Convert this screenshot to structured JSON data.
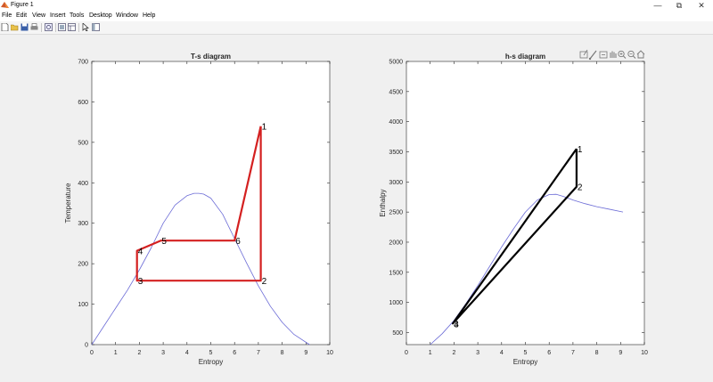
{
  "window": {
    "title": "Figure 1",
    "minimize_icon": "minimize-icon",
    "restore_icon": "restore-icon",
    "close_icon": "close-icon"
  },
  "menu": [
    "File",
    "Edit",
    "View",
    "Insert",
    "Tools",
    "Desktop",
    "Window",
    "Help"
  ],
  "toolbar": {
    "icons": [
      "new-figure-icon",
      "open-file-icon",
      "save-icon",
      "print-icon",
      "link-plot-icon",
      "hide-plot-tools-icon",
      "show-plot-tools-icon",
      "edit-plot-icon",
      "dock-icon"
    ]
  },
  "axes_toolbar": {
    "icons": [
      "export-icon",
      "brush-icon",
      "data-tips-icon",
      "pan-icon",
      "zoom-in-icon",
      "zoom-out-icon",
      "home-icon"
    ]
  },
  "chart_data": [
    {
      "type": "line",
      "title": "T-s diagram",
      "xlabel": "Entropy",
      "ylabel": "Temperature",
      "xlim": [
        0,
        10
      ],
      "ylim": [
        0,
        700
      ],
      "xticks": [
        "0",
        "1",
        "2",
        "3",
        "4",
        "5",
        "6",
        "7",
        "8",
        "9",
        "10"
      ],
      "yticks": [
        "0",
        "100",
        "200",
        "300",
        "400",
        "500",
        "600",
        "700"
      ],
      "grid": false,
      "series": [
        {
          "style": "dome",
          "color": "#6b6bd6",
          "x": [
            0.0,
            0.5,
            1.0,
            1.5,
            2.0,
            2.5,
            3.0,
            3.5,
            4.0,
            4.3,
            4.5,
            4.7,
            5.0,
            5.5,
            6.0,
            6.5,
            7.0,
            7.5,
            8.0,
            8.5,
            9.15
          ],
          "y": [
            0,
            45,
            90,
            135,
            185,
            240,
            300,
            345,
            368,
            374,
            374,
            372,
            362,
            322,
            262,
            202,
            145,
            95,
            55,
            25,
            0
          ]
        },
        {
          "style": "cycle",
          "color": "#d42020",
          "x": [
            7.1,
            7.1,
            1.9,
            1.9,
            2.9,
            6.0,
            7.1
          ],
          "y": [
            540,
            158,
            158,
            232,
            257,
            257,
            540
          ]
        }
      ],
      "point_labels": [
        {
          "text": "1",
          "x": 7.1,
          "y": 540
        },
        {
          "text": "2",
          "x": 7.1,
          "y": 158
        },
        {
          "text": "3",
          "x": 1.9,
          "y": 158
        },
        {
          "text": "4",
          "x": 1.9,
          "y": 232
        },
        {
          "text": "5",
          "x": 2.9,
          "y": 257
        },
        {
          "text": "6",
          "x": 6.0,
          "y": 257
        }
      ]
    },
    {
      "type": "line",
      "title": "h-s diagram",
      "xlabel": "Entropy",
      "ylabel": "Enthalpy",
      "xlim": [
        0,
        10
      ],
      "ylim": [
        300,
        5000
      ],
      "xticks": [
        "0",
        "1",
        "2",
        "3",
        "4",
        "5",
        "6",
        "7",
        "8",
        "9",
        "10"
      ],
      "yticks": [
        "500",
        "1000",
        "1500",
        "2000",
        "2500",
        "3000",
        "3500",
        "4000",
        "4500",
        "5000"
      ],
      "grid": false,
      "series": [
        {
          "style": "dome",
          "color": "#6b6bd6",
          "x": [
            1.0,
            1.5,
            2.0,
            2.5,
            3.0,
            3.5,
            4.0,
            4.5,
            5.0,
            5.5,
            6.0,
            6.3,
            6.6,
            7.0,
            7.5,
            8.0,
            8.5,
            9.1
          ],
          "y": [
            300,
            480,
            700,
            980,
            1280,
            1600,
            1920,
            2220,
            2500,
            2700,
            2790,
            2795,
            2760,
            2700,
            2640,
            2590,
            2550,
            2500
          ]
        },
        {
          "style": "cycle",
          "color": "#000000",
          "x": [
            7.15,
            7.15,
            1.95,
            7.15
          ],
          "y": [
            3550,
            2920,
            650,
            3550
          ]
        }
      ],
      "point_labels": [
        {
          "text": "1",
          "x": 7.15,
          "y": 3550
        },
        {
          "text": "2",
          "x": 7.15,
          "y": 2920
        },
        {
          "text": "3",
          "x": 1.95,
          "y": 650
        },
        {
          "text": "4",
          "x": 1.95,
          "y": 650
        }
      ]
    }
  ]
}
